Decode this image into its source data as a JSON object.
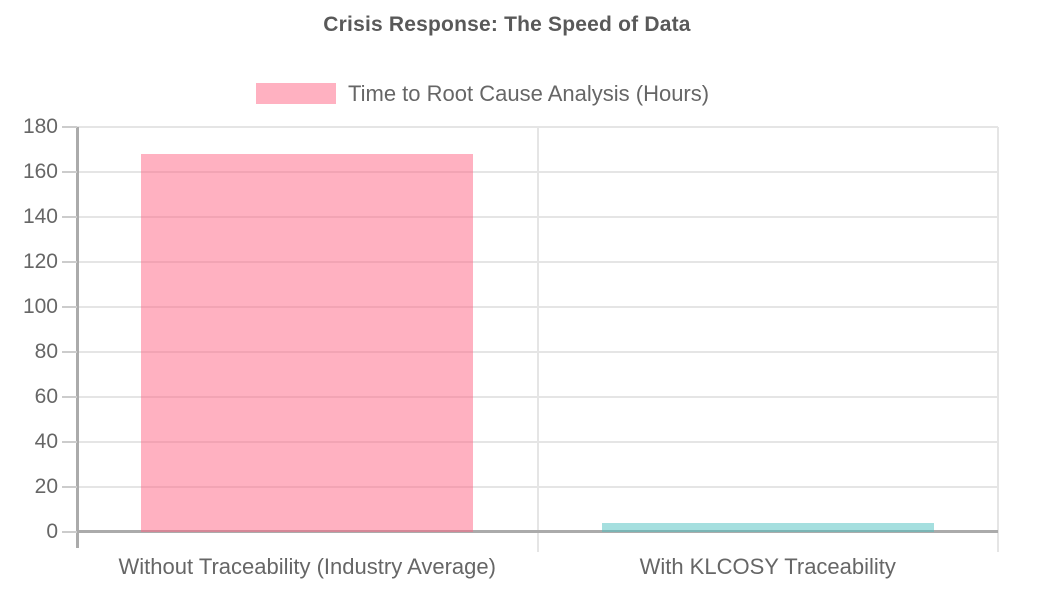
{
  "chart_data": {
    "type": "bar",
    "title": "Crisis Response: The Speed of Data",
    "categories": [
      "Without Traceability (Industry Average)",
      "With KLCOSY Traceability"
    ],
    "series": [
      {
        "name": "Time to Root Cause Analysis (Hours)",
        "values": [
          168,
          4
        ],
        "fill_colors": [
          "rgba(255, 99, 132, 0.5)",
          "rgba(75, 192, 192, 0.5)"
        ],
        "fill_colors_hex_on_white": [
          "#ffb1c1",
          "#a5dfdf"
        ]
      }
    ],
    "xlabel": "",
    "ylabel": "",
    "ylim": [
      0,
      180
    ],
    "ytick_step": 20,
    "yticks": [
      0,
      20,
      40,
      60,
      80,
      100,
      120,
      140,
      160,
      180
    ],
    "grid": true,
    "legend_position": "top",
    "legend_swatch_color": "rgba(255, 99, 132, 0.5)",
    "colors": {
      "background": "#ffffff",
      "title_text": "#595959",
      "axis_text": "#666666",
      "gridline": "#e5e5e5",
      "axis_line": "#ababab",
      "tick_mark": "#cccccc"
    }
  }
}
